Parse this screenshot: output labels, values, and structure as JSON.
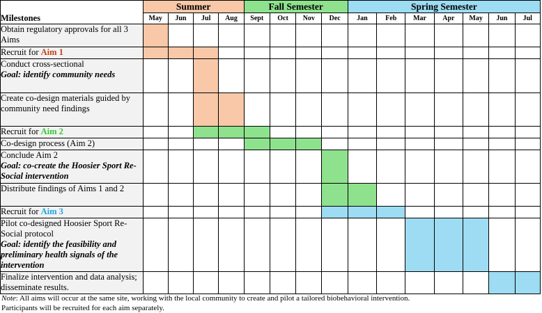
{
  "colors": {
    "summer": "#f8c8a8",
    "fall": "#8ee28e",
    "spring": "#9ddcf2",
    "aim1": "#c0441a",
    "aim2": "#3cc63c",
    "aim3": "#1fa6e0",
    "milestone_bg": "#f2f2f2"
  },
  "header": {
    "milestones_label": "Milestones",
    "semesters": [
      {
        "label": "Summer",
        "span": 4,
        "color_key": "summer"
      },
      {
        "label": "Fall Semester",
        "span": 4,
        "color_key": "fall"
      },
      {
        "label": "Spring Semester",
        "span": 7,
        "color_key": "spring"
      }
    ],
    "months": [
      "May",
      "Jun",
      "Jul",
      "Aug",
      "Sept",
      "Oct",
      "Nov",
      "Dec",
      "Jan",
      "Feb",
      "Mar",
      "Apr",
      "May",
      "Jun",
      "Jul"
    ]
  },
  "rows": [
    {
      "text": "Obtain regulatory approvals for all 3 Aims",
      "aim": "",
      "aim_key": "",
      "goal": "",
      "fill": "summer",
      "filled": [
        0
      ]
    },
    {
      "text": "Recruit for ",
      "aim": "Aim 1",
      "aim_key": "aim1",
      "goal": "",
      "fill": "summer",
      "filled": [
        0,
        1,
        2
      ]
    },
    {
      "text": "Conduct cross-sectional",
      "aim": "",
      "aim_key": "",
      "goal": "Goal: identify community needs",
      "fill": "summer",
      "filled": [
        2
      ]
    },
    {
      "text": "Create co-design materials guided by community need findings",
      "aim": "",
      "aim_key": "",
      "goal": "",
      "fill": "summer",
      "filled": [
        2,
        3
      ]
    },
    {
      "text": "Recruit for ",
      "aim": "Aim 2",
      "aim_key": "aim2",
      "goal": "",
      "fill": "fall",
      "filled": [
        2,
        3,
        4
      ]
    },
    {
      "text": "Co-design process (Aim 2)",
      "aim": "",
      "aim_key": "",
      "goal": "",
      "fill": "fall",
      "filled": [
        4,
        5,
        6
      ]
    },
    {
      "text": "Conclude Aim 2",
      "aim": "",
      "aim_key": "",
      "goal": "Goal: co-create the Hoosier Sport Re-Social intervention",
      "fill": "fall",
      "filled": [
        7
      ]
    },
    {
      "text": "Distribute findings of Aims 1 and 2",
      "aim": "",
      "aim_key": "",
      "goal": "",
      "fill": "fall",
      "filled": [
        7,
        8
      ]
    },
    {
      "text": "Recruit for ",
      "aim": "Aim 3",
      "aim_key": "aim3",
      "goal": "",
      "fill": "spring",
      "filled": [
        7,
        8,
        9
      ]
    },
    {
      "text": "Pilot co-designed Hoosier Sport Re-Social protocol",
      "aim": "",
      "aim_key": "",
      "goal": "Goal: identify the feasibility and preliminary health signals of the intervention",
      "fill": "spring",
      "filled": [
        10,
        11,
        12
      ]
    },
    {
      "text": "Finalize intervention and data analysis; disseminate results.",
      "aim": "",
      "aim_key": "",
      "goal": "",
      "fill": "spring",
      "filled": [
        13,
        14
      ]
    }
  ],
  "note": {
    "label": "Note",
    "line1": ": All aims will occur at the same site, working with the local community to create and pilot a tailored biobehavioral intervention.",
    "line2": "Participants will be recruited for each aim separately."
  }
}
